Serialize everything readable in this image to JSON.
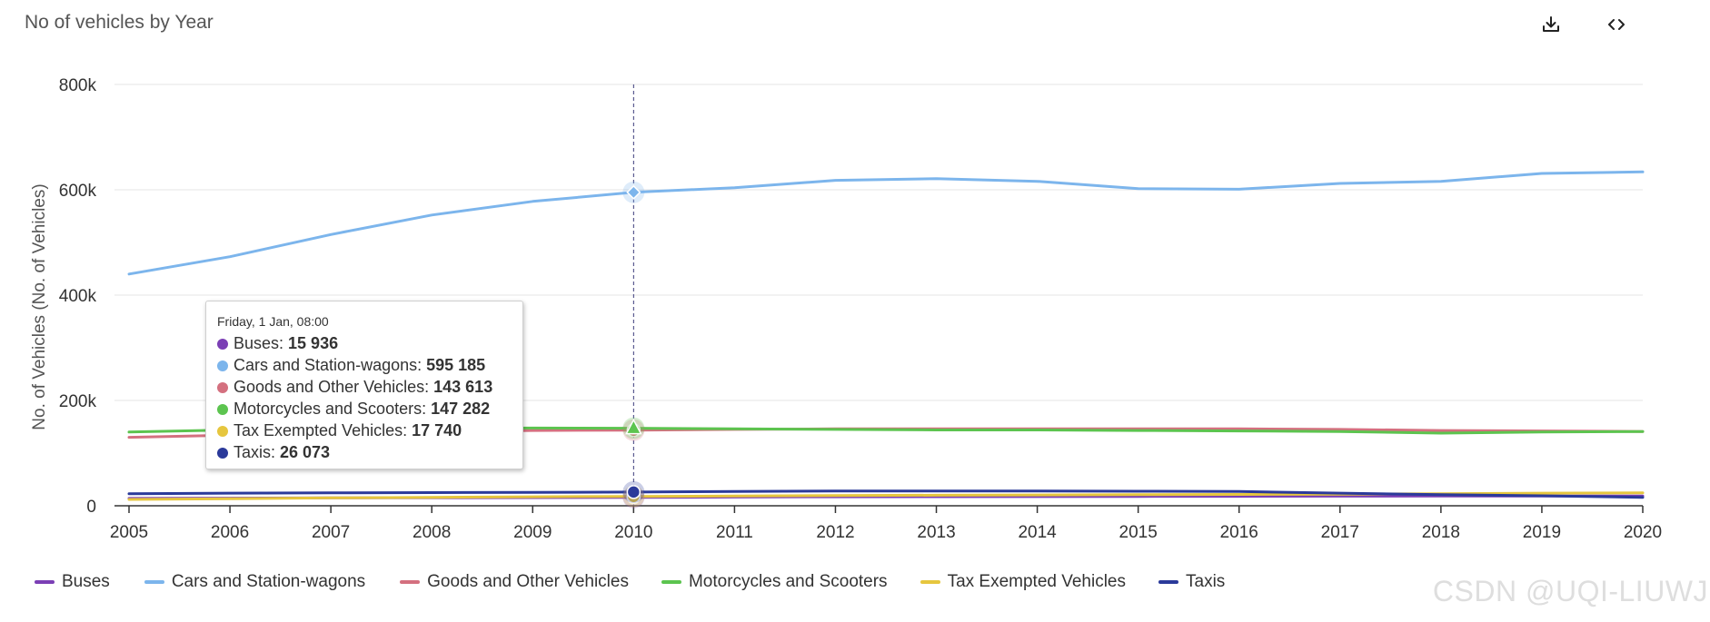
{
  "header": {
    "title": "No of vehicles by Year",
    "download_icon": "download-icon",
    "code_icon": "code-icon"
  },
  "chart_data": {
    "type": "line",
    "title": "No of vehicles by Year",
    "xlabel": "",
    "ylabel": "No. of Vehicles (No. of Vehicles)",
    "x": [
      "2005",
      "2006",
      "2007",
      "2008",
      "2009",
      "2010",
      "2011",
      "2012",
      "2013",
      "2014",
      "2015",
      "2016",
      "2017",
      "2018",
      "2019",
      "2020"
    ],
    "ylim": [
      0,
      800000
    ],
    "yticks": [
      0,
      200000,
      400000,
      600000,
      800000
    ],
    "ytick_labels": [
      "0",
      "200k",
      "400k",
      "600k",
      "800k"
    ],
    "grid": true,
    "legend_position": "bottom-left",
    "series": [
      {
        "name": "Buses",
        "color": "#7b3fb5",
        "values": [
          14000,
          14500,
          15000,
          15300,
          15600,
          15936,
          16500,
          17000,
          17200,
          17500,
          17800,
          18000,
          18200,
          18500,
          18600,
          18700
        ]
      },
      {
        "name": "Cars and Station-wagons",
        "color": "#7cb5ec",
        "values": [
          440000,
          473000,
          515000,
          552000,
          578000,
          595185,
          604000,
          618000,
          621000,
          616000,
          602000,
          601000,
          612000,
          616000,
          631000,
          634000
        ]
      },
      {
        "name": "Goods and Other Vehicles",
        "color": "#d4707f",
        "values": [
          130000,
          134000,
          138000,
          141000,
          143000,
          143613,
          145000,
          146000,
          146000,
          146000,
          146000,
          146000,
          145000,
          143000,
          142000,
          141000
        ]
      },
      {
        "name": "Motorcycles and Scooters",
        "color": "#5cc44f",
        "values": [
          140000,
          144000,
          146000,
          147000,
          147500,
          147282,
          146000,
          145000,
          144000,
          144000,
          143000,
          142000,
          141000,
          138000,
          140000,
          141000
        ]
      },
      {
        "name": "Tax Exempted Vehicles",
        "color": "#e6c63e",
        "values": [
          12000,
          13500,
          15000,
          16000,
          17000,
          17740,
          18500,
          19500,
          20000,
          20500,
          21000,
          21500,
          22000,
          23000,
          24000,
          24500
        ]
      },
      {
        "name": "Taxis",
        "color": "#2b3a9a",
        "values": [
          23000,
          24000,
          24500,
          25000,
          25500,
          26073,
          27000,
          28000,
          28000,
          28000,
          27500,
          27000,
          24000,
          21000,
          19000,
          16000
        ]
      }
    ],
    "hover_index": 5
  },
  "tooltip": {
    "header": "Friday, 1 Jan, 08:00",
    "rows": [
      {
        "label": "Buses: ",
        "value": "15 936",
        "color": "#7b3fb5"
      },
      {
        "label": "Cars and Station-wagons: ",
        "value": "595 185",
        "color": "#7cb5ec"
      },
      {
        "label": "Goods and Other Vehicles: ",
        "value": "143 613",
        "color": "#d4707f"
      },
      {
        "label": "Motorcycles and Scooters: ",
        "value": "147 282",
        "color": "#5cc44f"
      },
      {
        "label": "Tax Exempted Vehicles: ",
        "value": "17 740",
        "color": "#e6c63e"
      },
      {
        "label": "Taxis: ",
        "value": "26 073",
        "color": "#2b3a9a"
      }
    ]
  },
  "legend": [
    {
      "label": "Buses",
      "color": "#7b3fb5"
    },
    {
      "label": "Cars and Station-wagons",
      "color": "#7cb5ec"
    },
    {
      "label": "Goods and Other Vehicles",
      "color": "#d4707f"
    },
    {
      "label": "Motorcycles and Scooters",
      "color": "#5cc44f"
    },
    {
      "label": "Tax Exempted Vehicles",
      "color": "#e6c63e"
    },
    {
      "label": "Taxis",
      "color": "#2b3a9a"
    }
  ],
  "watermark": "CSDN @UQI-LIUWJ"
}
